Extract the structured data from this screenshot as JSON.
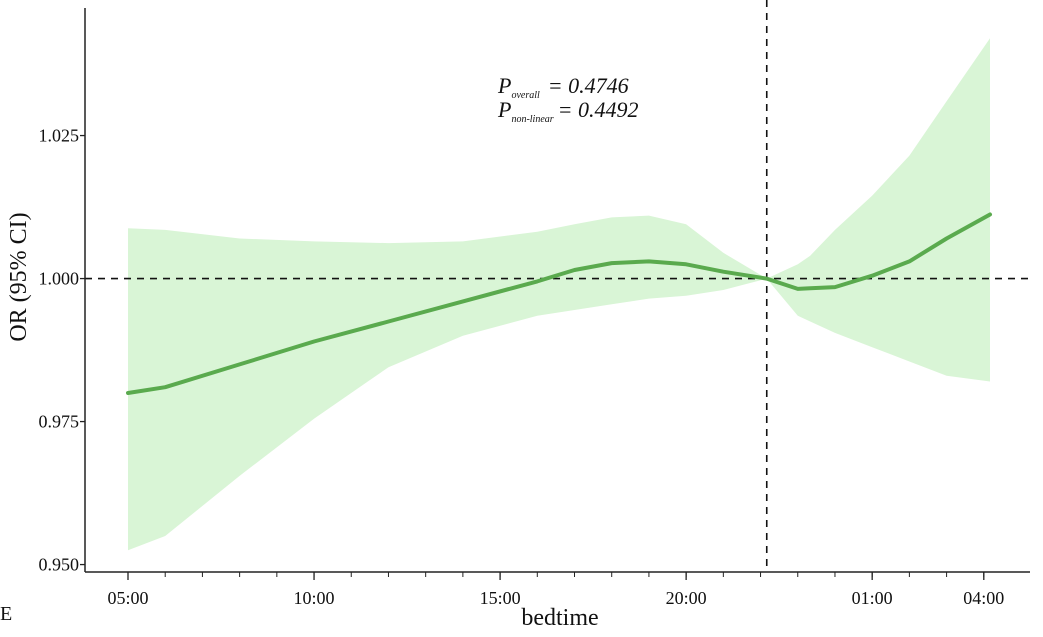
{
  "panel_label": "E",
  "chart_data": {
    "type": "line",
    "xlabel": "bedtime",
    "ylabel": "OR (95% CI)",
    "x_tick_labels": [
      "05:00",
      "10:00",
      "15:00",
      "20:00",
      "01:00",
      "04:00"
    ],
    "y_tick_labels": [
      "0.950",
      "0.975",
      "1.000",
      "1.025"
    ],
    "ylim": [
      0.9487,
      1.0473
    ],
    "reference_line_y": 1.0,
    "reference_time": "22:10",
    "annotations": {
      "p_overall_sub": "overall",
      "p_overall_value": "= 0.4746",
      "p_nonlinear_sub": "non-linear",
      "p_nonlinear_value": "= 0.4492",
      "p_symbol": "P"
    },
    "series": [
      {
        "color": "#5aaa4e",
        "band_color": "#d9f5d6",
        "x": [
          "05:00",
          "06:00",
          "08:00",
          "10:00",
          "12:00",
          "14:00",
          "16:00",
          "17:00",
          "18:00",
          "19:00",
          "20:00",
          "21:00",
          "22:10",
          "23:00",
          "23:20",
          "00:00",
          "01:00",
          "02:00",
          "03:00",
          "04:10"
        ],
        "y": [
          0.98,
          0.981,
          0.985,
          0.989,
          0.9925,
          0.996,
          0.9995,
          1.0015,
          1.0027,
          1.003,
          1.0025,
          1.0012,
          1.0,
          0.9982,
          0.9983,
          0.9985,
          1.0005,
          1.003,
          1.007,
          1.0112
        ],
        "lower": [
          0.9525,
          0.955,
          0.9655,
          0.9755,
          0.9845,
          0.99,
          0.9935,
          0.9945,
          0.9955,
          0.9965,
          0.997,
          0.998,
          1.0,
          0.9935,
          0.9925,
          0.9905,
          0.988,
          0.9855,
          0.983,
          0.982
        ],
        "upper": [
          1.0088,
          1.0085,
          1.007,
          1.0065,
          1.0062,
          1.0065,
          1.0082,
          1.0095,
          1.0107,
          1.011,
          1.0095,
          1.0045,
          1.0,
          1.0025,
          1.004,
          1.0085,
          1.0145,
          1.0215,
          1.031,
          1.042
        ]
      }
    ]
  }
}
